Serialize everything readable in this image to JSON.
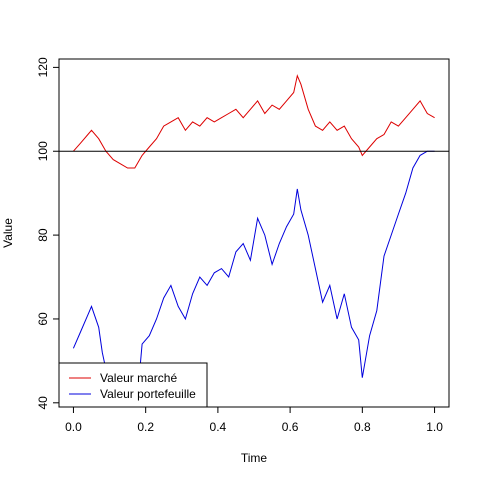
{
  "chart_data": {
    "type": "line",
    "xlabel": "Time",
    "ylabel": "Value",
    "xlim": [
      -0.04,
      1.04
    ],
    "ylim": [
      39,
      122
    ],
    "x_ticks": [
      0.0,
      0.2,
      0.4,
      0.6,
      0.8,
      1.0
    ],
    "x_tick_labels": [
      "0.0",
      "0.2",
      "0.4",
      "0.6",
      "0.8",
      "1.0"
    ],
    "y_ticks": [
      40,
      60,
      80,
      100,
      120
    ],
    "y_tick_labels": [
      "40",
      "60",
      "80",
      "100",
      "120"
    ],
    "reference_line": {
      "y": 100,
      "color": "#000000"
    },
    "legend": {
      "position": "bottom-left"
    },
    "grid": false,
    "series": [
      {
        "name": "Valeur marché",
        "color": "#dd0000",
        "x": [
          0.0,
          0.02,
          0.04,
          0.05,
          0.07,
          0.09,
          0.11,
          0.13,
          0.15,
          0.17,
          0.19,
          0.21,
          0.23,
          0.25,
          0.27,
          0.29,
          0.31,
          0.33,
          0.35,
          0.37,
          0.39,
          0.41,
          0.43,
          0.45,
          0.47,
          0.49,
          0.51,
          0.53,
          0.55,
          0.57,
          0.59,
          0.61,
          0.62,
          0.63,
          0.65,
          0.67,
          0.69,
          0.71,
          0.73,
          0.75,
          0.77,
          0.79,
          0.8,
          0.82,
          0.84,
          0.86,
          0.88,
          0.9,
          0.92,
          0.94,
          0.96,
          0.98,
          1.0
        ],
        "y": [
          100,
          102,
          104,
          105,
          103,
          100,
          98,
          97,
          96,
          96,
          99,
          101,
          103,
          106,
          107,
          108,
          105,
          107,
          106,
          108,
          107,
          108,
          109,
          110,
          108,
          110,
          112,
          109,
          111,
          110,
          112,
          114,
          118,
          116,
          110,
          106,
          105,
          107,
          105,
          106,
          103,
          101,
          99,
          101,
          103,
          104,
          107,
          106,
          108,
          110,
          112,
          109,
          108
        ]
      },
      {
        "name": "Valeur portefeuille",
        "color": "#0000dd",
        "x": [
          0.0,
          0.02,
          0.04,
          0.05,
          0.07,
          0.08,
          0.09,
          0.11,
          0.13,
          0.15,
          0.17,
          0.18,
          0.19,
          0.21,
          0.23,
          0.25,
          0.27,
          0.29,
          0.31,
          0.33,
          0.35,
          0.37,
          0.39,
          0.41,
          0.43,
          0.45,
          0.47,
          0.49,
          0.51,
          0.53,
          0.55,
          0.57,
          0.59,
          0.61,
          0.62,
          0.63,
          0.65,
          0.67,
          0.69,
          0.71,
          0.73,
          0.75,
          0.77,
          0.79,
          0.8,
          0.82,
          0.84,
          0.86,
          0.88,
          0.9,
          0.92,
          0.94,
          0.96,
          0.98,
          1.0
        ],
        "y": [
          53,
          57,
          61,
          63,
          58,
          52,
          48,
          42,
          40,
          46,
          40,
          44,
          54,
          56,
          60,
          65,
          68,
          63,
          60,
          66,
          70,
          68,
          71,
          72,
          70,
          76,
          78,
          74,
          84,
          80,
          73,
          78,
          82,
          85,
          91,
          86,
          80,
          72,
          64,
          68,
          60,
          66,
          58,
          55,
          46,
          56,
          62,
          75,
          80,
          85,
          90,
          96,
          99,
          100,
          100
        ]
      }
    ]
  }
}
